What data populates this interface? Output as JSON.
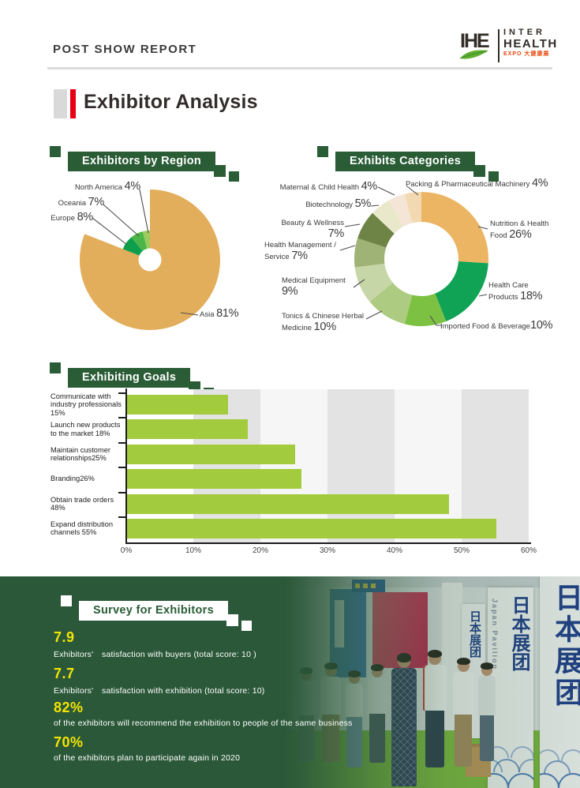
{
  "header": {
    "report_label": "POST SHOW REPORT",
    "logo": {
      "abbr": "IHE",
      "line1": "INTER",
      "line2": "HEALTH",
      "line3": "EXPO 大健康展"
    }
  },
  "page_title": "Exhibitor Analysis",
  "sections": {
    "region": {
      "banner": "Exhibitors by Region"
    },
    "categories": {
      "banner": "Exhibits Categories"
    },
    "goals": {
      "banner": "Exhibiting Goals"
    },
    "survey": {
      "banner": "Survey for Exhibitors"
    }
  },
  "region_labels": [
    {
      "name": "North America ",
      "pct": "4%"
    },
    {
      "name": "Oceania ",
      "pct": "7%"
    },
    {
      "name": "Europe ",
      "pct": "8%"
    },
    {
      "name": "Asia ",
      "pct": "81%"
    }
  ],
  "category_labels": [
    {
      "name": "Maternal & Child Health ",
      "pct": "4%"
    },
    {
      "name": "Packing & Pharmaceutical Machinery ",
      "pct": "4%"
    },
    {
      "name": "Biotechnology ",
      "pct": "5%"
    },
    {
      "name": "Beauty & Wellness ",
      "pct": "7%"
    },
    {
      "name": "Health Management /\nService  ",
      "pct": "7%"
    },
    {
      "name": "Medical Equipment\n",
      "pct": "9%"
    },
    {
      "name": "Tonics & Chinese Herbal\nMedicine ",
      "pct": "10%"
    },
    {
      "name": "Nutrition & Health\nFood ",
      "pct": "26%"
    },
    {
      "name": "Health Care\nProducts ",
      "pct": "18%"
    },
    {
      "name": "Imported Food & Beverage",
      "pct": "10%"
    }
  ],
  "survey": {
    "stats": [
      {
        "value": "7.9",
        "desc": "Exhibitors'　satisfaction with buyers (total score: 10 )"
      },
      {
        "value": "7.7",
        "desc": "Exhibitors'　satisfaction with exhibition (total score: 10)"
      },
      {
        "value": "82%",
        "desc": "of the exhibitors will recommend the exhibition to people of the same business"
      },
      {
        "value": "70%",
        "desc": "of the exhibitors plan to participate again in 2020"
      }
    ]
  },
  "photo": {
    "pavilion_chars": "日本展团",
    "pavilion_side": "Japan Pavilion"
  },
  "chart_data": [
    {
      "type": "pie",
      "title": "Exhibitors by Region",
      "start_angle_deg": 0,
      "clockwise": true,
      "hole": true,
      "slices": [
        {
          "label": "Asia",
          "value": 81,
          "color": "#e2ae5b",
          "radius": "full"
        },
        {
          "label": "Europe",
          "value": 8,
          "color": "#0e9f4d",
          "radius": "small"
        },
        {
          "label": "Oceania",
          "value": 7,
          "color": "#4cb648",
          "radius": "small"
        },
        {
          "label": "North America",
          "value": 4,
          "color": "#9ccb5e",
          "radius": "small"
        }
      ]
    },
    {
      "type": "donut",
      "title": "Exhibits Categories",
      "start_angle_deg": 0,
      "clockwise": true,
      "slices": [
        {
          "label": "Nutrition & Health Food",
          "value": 26,
          "color": "#ebb564"
        },
        {
          "label": "Health Care Products",
          "value": 18,
          "color": "#10a355"
        },
        {
          "label": "Imported Food & Beverage",
          "value": 10,
          "color": "#7dc142"
        },
        {
          "label": "Tonics & Chinese Herbal Medicine",
          "value": 10,
          "color": "#aecb82"
        },
        {
          "label": "Medical Equipment",
          "value": 9,
          "color": "#c6d6a6"
        },
        {
          "label": "Health Management / Service",
          "value": 7,
          "color": "#9fb377"
        },
        {
          "label": "Beauty & Wellness",
          "value": 7,
          "color": "#6e8446"
        },
        {
          "label": "Biotechnology",
          "value": 5,
          "color": "#eae8cb"
        },
        {
          "label": "Maternal & Child Health",
          "value": 4,
          "color": "#f4e5d6"
        },
        {
          "label": "Packing & Pharmaceutical Machinery",
          "value": 4,
          "color": "#f2d9b1"
        }
      ]
    },
    {
      "type": "bar",
      "title": "Exhibiting Goals",
      "categories": [
        "Communicate with industry professionals",
        "Launch new products to the market",
        "Maintain customer relationships",
        "Branding",
        "Obtain trade orders",
        "Expand distribution channels"
      ],
      "values": [
        15,
        18,
        25,
        26,
        48,
        55
      ],
      "display_labels": [
        "Communicate with\nindustry professionals\n15%",
        "Launch new products\nto the market 18%",
        "Maintain customer\nrelationships25%",
        "Branding26%",
        "Obtain trade orders\n48%",
        "Expand distribution\nchannels 55%"
      ],
      "xlim": [
        0,
        60
      ],
      "x_ticks": [
        "0%",
        "10%",
        "20%",
        "30%",
        "40%",
        "50%",
        "60%"
      ],
      "bar_color": "#a3cb3e",
      "grid_bands": [
        "#ffffff",
        "#e3e3e3",
        "#f6f6f6",
        "#e3e3e3",
        "#f6f6f6",
        "#e3e3e3"
      ]
    }
  ]
}
